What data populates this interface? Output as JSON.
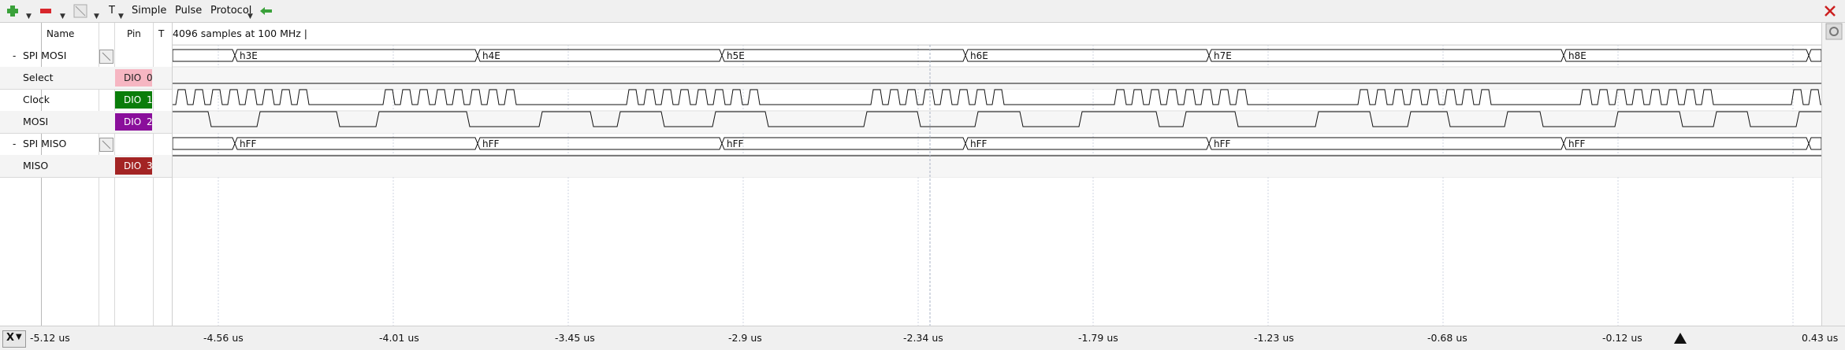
{
  "toolbar": {
    "items": [
      {
        "id": "add",
        "icon": "plus-icon",
        "label": "",
        "color": "#3aa13a"
      },
      {
        "id": "remove",
        "icon": "minus-icon",
        "label": "",
        "color": "#d8262c"
      },
      {
        "id": "edit",
        "icon": "edit-icon",
        "label": ""
      },
      {
        "id": "text",
        "icon": "text-icon",
        "label": "T"
      },
      {
        "id": "simple",
        "label": "Simple"
      },
      {
        "id": "pulse",
        "label": "Pulse"
      },
      {
        "id": "protocol",
        "label": "Protocol"
      },
      {
        "id": "back",
        "icon": "arrow-left-icon",
        "color": "#3aa13a"
      }
    ],
    "close_icon_color": "#cc1f1f"
  },
  "columns": {
    "name": "Name",
    "pin": "Pin",
    "t": "T"
  },
  "info_text": "4096 samples at 100 MHz  |",
  "signals": [
    {
      "id": "spi-mosi",
      "collapse": "-",
      "name": "SPI MOSI",
      "type": "bus",
      "pin": null
    },
    {
      "id": "select",
      "name": "Select",
      "type": "digital",
      "pin": {
        "label": "DIO",
        "num": "0",
        "bg": "#f6b6c2",
        "fg": "#222222"
      }
    },
    {
      "id": "clock",
      "name": "Clock",
      "type": "digital",
      "pin": {
        "label": "DIO",
        "num": "1",
        "bg": "#0a7d0a",
        "fg": "#ffffff"
      }
    },
    {
      "id": "mosi",
      "name": "MOSI",
      "type": "digital",
      "pin": {
        "label": "DIO",
        "num": "2",
        "bg": "#8a0f9b",
        "fg": "#ffffff"
      }
    },
    {
      "id": "spi-miso",
      "collapse": "-",
      "name": "SPI MISO",
      "type": "bus",
      "pin": null
    },
    {
      "id": "miso",
      "name": "MISO",
      "type": "digital",
      "pin": {
        "label": "DIO",
        "num": "3",
        "bg": "#a32424",
        "fg": "#ffffff"
      }
    }
  ],
  "buses": {
    "mosi": [
      "h3E",
      "h4E",
      "h5E",
      "h6E",
      "h7E",
      "h8E"
    ],
    "miso": [
      "hFF",
      "hFF",
      "hFF",
      "hFF",
      "hFF",
      "hFF"
    ]
  },
  "time_axis": {
    "labels": [
      "-5.12 us",
      "-4.56 us",
      "-4.01 us",
      "-3.45 us",
      "-2.9 us",
      "-2.34 us",
      "-1.79 us",
      "-1.23 us",
      "-0.68 us",
      "-0.12 us",
      "0.43 us"
    ],
    "close_label": "X",
    "trigger_icon": "trigger-marker-icon"
  }
}
